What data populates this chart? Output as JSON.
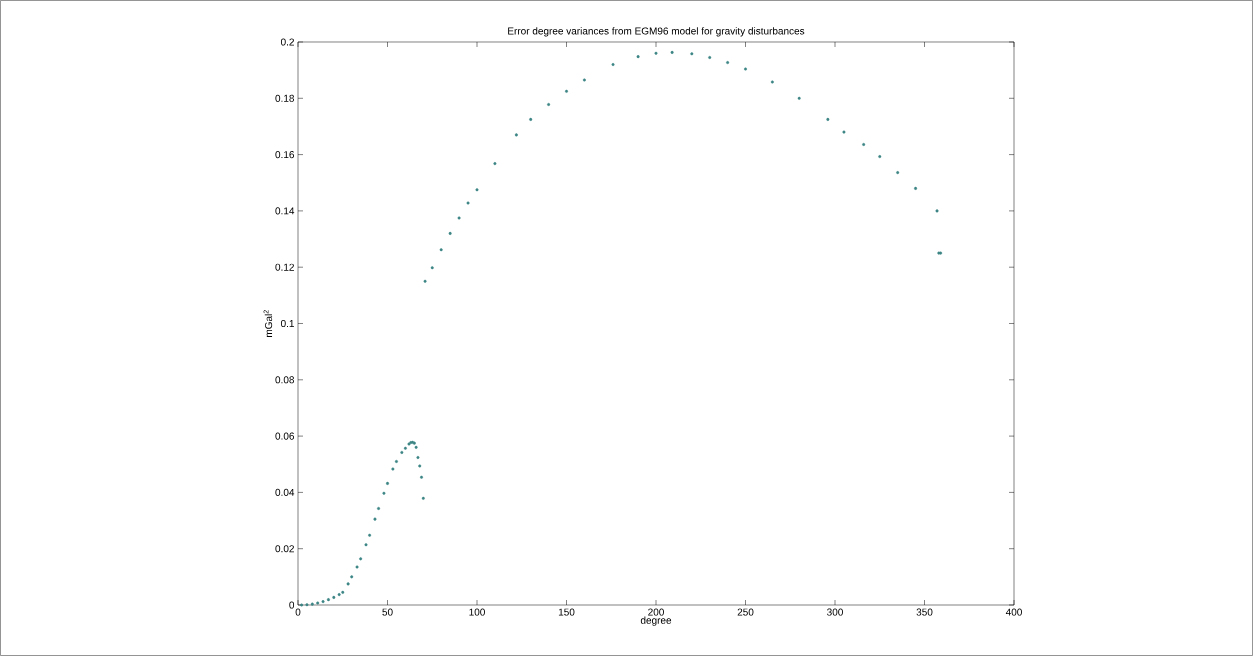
{
  "chart_data": {
    "type": "scatter",
    "title": "Error degree variances from EGM96 model for gravity disturbances",
    "xlabel": "degree",
    "ylabel": "mGal$^{2}$",
    "series": [
      {
        "color": "#3d8585",
        "x": [
          2,
          5,
          8,
          11,
          14,
          17,
          20,
          23,
          25,
          28,
          30,
          33,
          35,
          38,
          40,
          43,
          45,
          48,
          50,
          53,
          55,
          58,
          60,
          62,
          63,
          64,
          65,
          66,
          67,
          68,
          69,
          70
        ],
        "values": [
          0,
          0.0001,
          0.0003,
          0.0007,
          0.0012,
          0.0019,
          0.0027,
          0.0037,
          0.0045,
          0.0075,
          0.01,
          0.0135,
          0.0164,
          0.0214,
          0.0248,
          0.0305,
          0.0343,
          0.0397,
          0.0432,
          0.0483,
          0.051,
          0.0542,
          0.0557,
          0.0572,
          0.0577,
          0.0578,
          0.0575,
          0.056,
          0.0524,
          0.0494,
          0.0454,
          0.0379
        ]
      },
      {
        "color": "#3d8585",
        "x": [
          71,
          75,
          80,
          85,
          90,
          95,
          100,
          110,
          122,
          130,
          140,
          150,
          160,
          176,
          190,
          200,
          209,
          220,
          230,
          240,
          250,
          265,
          280,
          296,
          305,
          316,
          325,
          335,
          345,
          357,
          358,
          359
        ],
        "values": [
          0.115,
          0.1198,
          0.1262,
          0.132,
          0.1375,
          0.1428,
          0.1475,
          0.1568,
          0.167,
          0.1725,
          0.1778,
          0.1825,
          0.1865,
          0.192,
          0.1948,
          0.196,
          0.1963,
          0.1958,
          0.1945,
          0.1927,
          0.1904,
          0.1858,
          0.18,
          0.1725,
          0.168,
          0.1636,
          0.1593,
          0.1536,
          0.148,
          0.14,
          0.125,
          0.125
        ]
      }
    ],
    "xlim": [
      0,
      400
    ],
    "ylim": [
      0,
      0.2
    ],
    "xticks": [
      0,
      50,
      100,
      150,
      200,
      250,
      300,
      350,
      400
    ],
    "yticks": [
      0,
      0.02,
      0.04,
      0.06,
      0.08,
      0.1,
      0.12,
      0.14,
      0.16,
      0.18,
      0.2
    ],
    "marker": "circle"
  }
}
